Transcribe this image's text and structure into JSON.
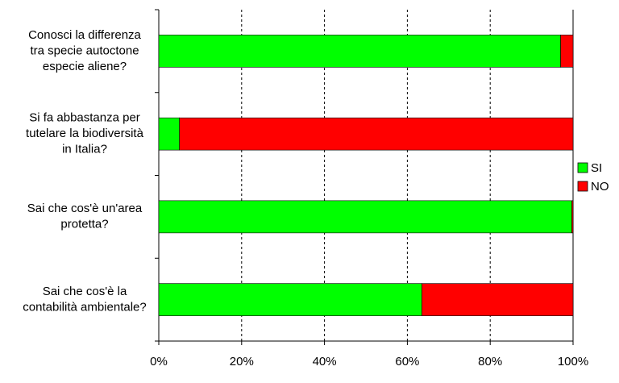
{
  "chart_data": {
    "type": "stacked-bar-horizontal",
    "categories": [
      "Conosci la differenza\ntra specie autoctone\nespecie aliene?",
      "Si fa abbastanza per\ntutelare la biodiversità\nin Italia?",
      "Sai che cos'è un'area\nprotetta?",
      "Sai che cos'è la\ncontabilità ambientale?"
    ],
    "series": [
      {
        "name": "SI",
        "color": "#00ff00",
        "values": [
          97,
          5,
          99.7,
          63.5
        ]
      },
      {
        "name": "NO",
        "color": "#ff0000",
        "values": [
          3,
          95,
          0.3,
          36.5
        ]
      }
    ],
    "xlim": [
      0,
      100
    ],
    "xticks": [
      {
        "value": 0,
        "label": "0%"
      },
      {
        "value": 20,
        "label": "20%"
      },
      {
        "value": 40,
        "label": "40%"
      },
      {
        "value": 60,
        "label": "60%"
      },
      {
        "value": 80,
        "label": "80%"
      },
      {
        "value": 100,
        "label": "100%"
      }
    ],
    "grid": true,
    "legend": "right"
  }
}
